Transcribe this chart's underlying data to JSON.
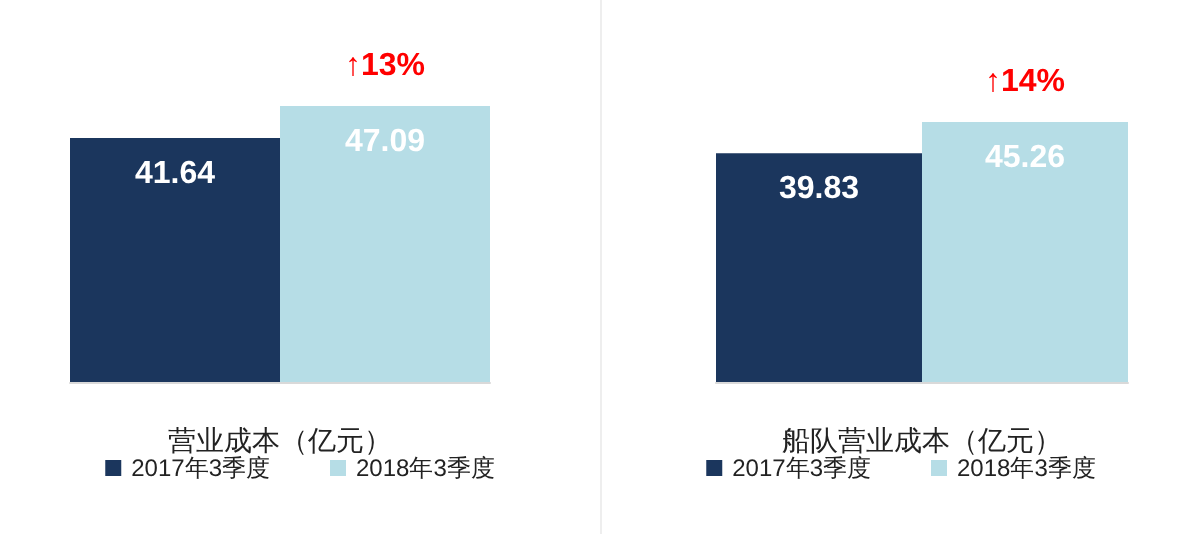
{
  "chart_data": [
    {
      "type": "bar",
      "xlabel": "营业成本（亿元）",
      "categories": [
        null
      ],
      "tick_labels": false,
      "data_labels": true,
      "legend": "bottom",
      "grid": false,
      "series": [
        {
          "name": "2017年3季度",
          "color": "#1b365d",
          "values": [
            41.64
          ]
        },
        {
          "name": "2018年3季度",
          "color": "#b6dde6",
          "values": [
            47.09
          ]
        }
      ],
      "annotations": [
        {
          "text": "↑13%",
          "y": 47.09
        }
      ]
    },
    {
      "type": "bar",
      "xlabel": "船队营业成本（亿元）",
      "categories": [
        null
      ],
      "tick_labels": false,
      "data_labels": true,
      "legend": "bottom",
      "grid": false,
      "series": [
        {
          "name": "2017年3季度",
          "color": "#1b365d",
          "values": [
            39.83
          ]
        },
        {
          "name": "2018年3季度",
          "color": "#b6dde6",
          "values": [
            45.26
          ]
        }
      ],
      "annotations": [
        {
          "text": "↑14%",
          "y": 45.26
        }
      ]
    }
  ]
}
